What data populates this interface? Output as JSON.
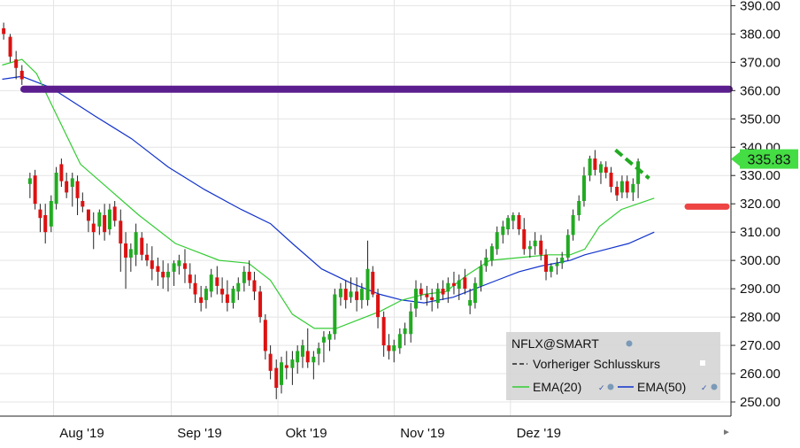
{
  "chart_data": {
    "type": "candlestick",
    "symbol": "NFLX@SMART",
    "last_price_label": "335.83",
    "y_range": [
      245,
      392
    ],
    "y_ticks": [
      "390.00",
      "380.00",
      "370.00",
      "360.00",
      "350.00",
      "340.00",
      "330.00",
      "320.00",
      "310.00",
      "300.00",
      "290.00",
      "280.00",
      "270.00",
      "260.00",
      "250.00"
    ],
    "x_labels": [
      "Aug '19",
      "Sep '19",
      "Okt '19",
      "Nov '19",
      "Dez '19"
    ],
    "x_label_positions": [
      0.112,
      0.273,
      0.419,
      0.578,
      0.737
    ],
    "legend": {
      "symbol": "NFLX@SMART",
      "prev_close": "Vorheriger Schlusskurs",
      "ema20": "EMA(20)",
      "ema50": "EMA(50)"
    },
    "annotations": {
      "resistance_level": 360.5,
      "support_level": 319
    },
    "colors": {
      "up": "#22aa22",
      "down": "#dd1111",
      "ema20": "#33cc33",
      "ema50": "#1133cc",
      "resistance": "#5b1e8e",
      "support": "#ee4444",
      "price_box": "#44dd44"
    },
    "ema20": [
      [
        0.003,
        369
      ],
      [
        0.03,
        371
      ],
      [
        0.05,
        366
      ],
      [
        0.08,
        350
      ],
      [
        0.11,
        334
      ],
      [
        0.15,
        325
      ],
      [
        0.19,
        316
      ],
      [
        0.24,
        306
      ],
      [
        0.3,
        300
      ],
      [
        0.34,
        299
      ],
      [
        0.37,
        293
      ],
      [
        0.4,
        281
      ],
      [
        0.43,
        276
      ],
      [
        0.46,
        276
      ],
      [
        0.49,
        279
      ],
      [
        0.52,
        282
      ],
      [
        0.55,
        286
      ],
      [
        0.58,
        288
      ],
      [
        0.61,
        289
      ],
      [
        0.64,
        295
      ],
      [
        0.67,
        300
      ],
      [
        0.71,
        301
      ],
      [
        0.75,
        302
      ],
      [
        0.78,
        302
      ],
      [
        0.8,
        304
      ],
      [
        0.82,
        312
      ],
      [
        0.85,
        318
      ],
      [
        0.895,
        322
      ]
    ],
    "ema50": [
      [
        0.003,
        364
      ],
      [
        0.03,
        365
      ],
      [
        0.07,
        361
      ],
      [
        0.1,
        356
      ],
      [
        0.13,
        351
      ],
      [
        0.18,
        343
      ],
      [
        0.23,
        333
      ],
      [
        0.28,
        325
      ],
      [
        0.33,
        318
      ],
      [
        0.37,
        313
      ],
      [
        0.4,
        306
      ],
      [
        0.44,
        297
      ],
      [
        0.48,
        292
      ],
      [
        0.52,
        288
      ],
      [
        0.55,
        286
      ],
      [
        0.58,
        285
      ],
      [
        0.62,
        287
      ],
      [
        0.65,
        290
      ],
      [
        0.68,
        293
      ],
      [
        0.71,
        296
      ],
      [
        0.74,
        298
      ],
      [
        0.78,
        300
      ],
      [
        0.8,
        302
      ],
      [
        0.83,
        304
      ],
      [
        0.86,
        306
      ],
      [
        0.895,
        310
      ]
    ],
    "candles": [
      [
        0.005,
        382,
        384,
        378,
        380
      ],
      [
        0.014,
        379,
        380,
        370,
        372
      ],
      [
        0.022,
        371,
        374,
        364,
        368
      ],
      [
        0.03,
        367,
        369,
        362,
        364
      ],
      [
        0.041,
        327,
        331,
        322,
        329
      ],
      [
        0.048,
        330,
        332,
        318,
        320
      ],
      [
        0.055,
        318,
        320,
        310,
        315
      ],
      [
        0.062,
        316,
        320,
        306,
        310
      ],
      [
        0.07,
        312,
        323,
        310,
        321
      ],
      [
        0.077,
        320,
        333,
        318,
        331
      ],
      [
        0.084,
        334,
        336,
        326,
        328
      ],
      [
        0.091,
        328,
        331,
        322,
        324
      ],
      [
        0.099,
        326,
        331,
        319,
        329
      ],
      [
        0.106,
        328,
        330,
        316,
        322
      ],
      [
        0.113,
        321,
        324,
        317,
        319
      ],
      [
        0.121,
        318,
        318,
        310,
        314
      ],
      [
        0.128,
        313,
        317,
        304,
        310
      ],
      [
        0.136,
        312,
        318,
        309,
        317
      ],
      [
        0.143,
        316,
        320,
        307,
        310
      ],
      [
        0.15,
        311,
        320,
        309,
        318
      ],
      [
        0.157,
        319,
        321,
        312,
        314
      ],
      [
        0.165,
        314,
        318,
        296,
        306
      ],
      [
        0.172,
        306,
        310,
        290,
        301
      ],
      [
        0.179,
        301,
        306,
        296,
        304
      ],
      [
        0.186,
        302,
        313,
        298,
        310
      ],
      [
        0.194,
        308,
        310,
        300,
        302
      ],
      [
        0.201,
        302,
        306,
        298,
        300
      ],
      [
        0.208,
        300,
        305,
        293,
        297
      ],
      [
        0.216,
        298,
        301,
        291,
        296
      ],
      [
        0.223,
        296,
        300,
        290,
        294
      ],
      [
        0.23,
        294,
        299,
        289,
        296
      ],
      [
        0.238,
        296,
        300,
        291,
        299
      ],
      [
        0.245,
        298,
        302,
        295,
        300
      ],
      [
        0.253,
        299,
        304,
        292,
        297
      ],
      [
        0.26,
        295,
        299,
        290,
        292
      ],
      [
        0.267,
        292,
        295,
        285,
        288
      ],
      [
        0.275,
        287,
        291,
        282,
        285
      ],
      [
        0.282,
        286,
        291,
        283,
        290
      ],
      [
        0.289,
        289,
        297,
        287,
        295
      ],
      [
        0.297,
        294,
        298,
        288,
        291
      ],
      [
        0.304,
        290,
        294,
        285,
        288
      ],
      [
        0.311,
        288,
        293,
        282,
        285
      ],
      [
        0.319,
        285,
        291,
        283,
        290
      ],
      [
        0.326,
        289,
        294,
        286,
        292
      ],
      [
        0.334,
        292,
        298,
        289,
        296
      ],
      [
        0.341,
        296,
        300,
        291,
        293
      ],
      [
        0.348,
        293,
        296,
        286,
        289
      ],
      [
        0.356,
        289,
        291,
        278,
        280
      ],
      [
        0.363,
        279,
        281,
        265,
        268
      ],
      [
        0.37,
        267,
        270,
        258,
        261
      ],
      [
        0.378,
        262,
        265,
        251,
        255
      ],
      [
        0.385,
        256,
        266,
        253,
        264
      ],
      [
        0.392,
        263,
        268,
        258,
        262
      ],
      [
        0.4,
        262,
        268,
        256,
        265
      ],
      [
        0.407,
        264,
        270,
        260,
        268
      ],
      [
        0.414,
        266,
        272,
        262,
        270
      ],
      [
        0.421,
        268,
        276,
        262,
        264
      ],
      [
        0.429,
        264,
        268,
        258,
        266
      ],
      [
        0.436,
        267,
        271,
        263,
        269
      ],
      [
        0.443,
        271,
        275,
        264,
        273
      ],
      [
        0.451,
        272,
        275,
        268,
        274
      ],
      [
        0.458,
        274,
        290,
        272,
        288
      ],
      [
        0.466,
        287,
        292,
        284,
        290
      ],
      [
        0.473,
        290,
        293,
        283,
        286
      ],
      [
        0.48,
        287,
        294,
        285,
        289
      ],
      [
        0.488,
        289,
        294,
        282,
        286
      ],
      [
        0.495,
        286,
        292,
        283,
        290
      ],
      [
        0.503,
        286,
        307,
        284,
        297
      ],
      [
        0.51,
        296,
        298,
        287,
        288
      ],
      [
        0.517,
        288,
        290,
        276,
        280
      ],
      [
        0.525,
        280,
        282,
        266,
        270
      ],
      [
        0.532,
        270,
        274,
        265,
        268
      ],
      [
        0.539,
        268,
        272,
        264,
        270
      ],
      [
        0.547,
        269,
        276,
        267,
        274
      ],
      [
        0.554,
        274,
        278,
        270,
        276
      ],
      [
        0.562,
        274,
        285,
        271,
        282
      ],
      [
        0.569,
        283,
        293,
        280,
        290
      ],
      [
        0.576,
        290,
        292,
        286,
        288
      ],
      [
        0.584,
        288,
        291,
        284,
        287
      ],
      [
        0.591,
        287,
        290,
        282,
        286
      ],
      [
        0.599,
        285,
        292,
        283,
        290
      ],
      [
        0.606,
        290,
        293,
        286,
        288
      ],
      [
        0.613,
        289,
        294,
        285,
        292
      ],
      [
        0.621,
        292,
        296,
        288,
        291
      ],
      [
        0.628,
        290,
        295,
        286,
        293
      ],
      [
        0.636,
        294,
        297,
        288,
        290
      ],
      [
        0.643,
        284,
        290,
        281,
        286
      ],
      [
        0.65,
        285,
        294,
        283,
        292
      ],
      [
        0.658,
        291,
        300,
        289,
        298
      ],
      [
        0.665,
        298,
        304,
        296,
        301
      ],
      [
        0.673,
        300,
        306,
        298,
        305
      ],
      [
        0.68,
        304,
        312,
        302,
        310
      ],
      [
        0.688,
        309,
        314,
        306,
        312
      ],
      [
        0.695,
        311,
        316,
        309,
        315
      ],
      [
        0.702,
        314,
        317,
        311,
        316
      ],
      [
        0.71,
        316,
        317,
        309,
        311
      ],
      [
        0.717,
        311,
        315,
        302,
        304
      ],
      [
        0.725,
        304,
        307,
        301,
        305
      ],
      [
        0.732,
        305,
        310,
        302,
        307
      ],
      [
        0.74,
        307,
        309,
        300,
        302
      ],
      [
        0.747,
        302,
        304,
        293,
        296
      ],
      [
        0.754,
        296,
        299,
        294,
        298
      ],
      [
        0.762,
        298,
        301,
        295,
        299
      ],
      [
        0.769,
        299,
        303,
        297,
        301
      ],
      [
        0.777,
        301,
        311,
        300,
        309
      ],
      [
        0.784,
        309,
        318,
        307,
        316
      ],
      [
        0.792,
        316,
        323,
        314,
        321
      ],
      [
        0.799,
        321,
        333,
        319,
        330
      ],
      [
        0.807,
        330,
        337,
        328,
        336
      ],
      [
        0.814,
        336,
        339,
        330,
        332
      ],
      [
        0.822,
        331,
        335,
        327,
        334
      ],
      [
        0.829,
        333,
        335,
        329,
        331
      ],
      [
        0.836,
        331,
        333,
        324,
        326
      ],
      [
        0.844,
        326,
        328,
        321,
        323
      ],
      [
        0.851,
        324,
        330,
        322,
        328
      ],
      [
        0.858,
        328,
        330,
        322,
        324
      ],
      [
        0.866,
        324,
        329,
        321,
        327
      ],
      [
        0.873,
        327,
        336,
        322,
        335
      ]
    ]
  }
}
